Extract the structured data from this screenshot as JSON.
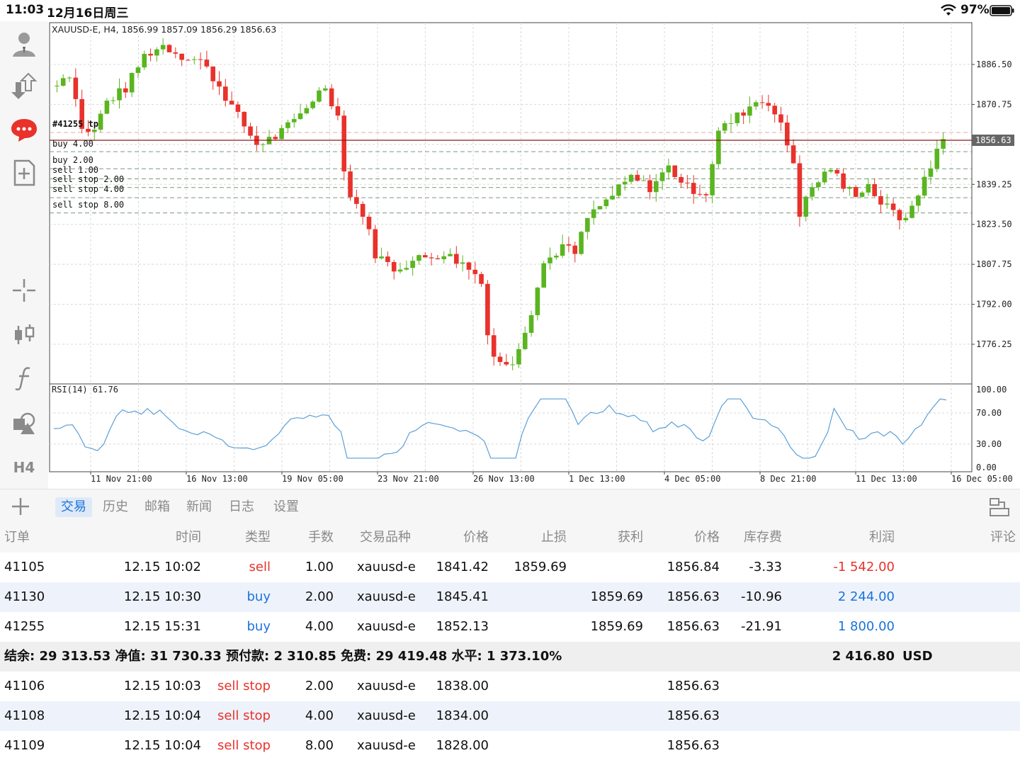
{
  "statusbar": {
    "time": "11:03",
    "date": "12月16日周三",
    "battery_pct": "97%"
  },
  "chart": {
    "header": "XAUUSD-E, H4, 1856.99 1857.09 1856.29 1856.63",
    "price_labels": [
      "1886.50",
      "1870.75",
      "1839.25",
      "1823.50",
      "1807.75",
      "1792.00",
      "1776.25"
    ],
    "current_price": "1856.63",
    "order_lines": [
      {
        "label": "#41255 tp",
        "price": 1859.69,
        "color": "#e8a9a9",
        "text_color": "#111"
      },
      {
        "label": "buy 4.00",
        "price": 1852.13,
        "color": "#7a9a7a",
        "text_color": "#111"
      },
      {
        "label": "buy 2.00",
        "price": 1845.41,
        "color": "#7a9a7a",
        "text_color": "#111"
      },
      {
        "label": "sell 1.00",
        "price": 1841.42,
        "color": "#7a9a7a",
        "text_color": "#111"
      },
      {
        "label": "sell stop 2.00",
        "price": 1838.0,
        "color": "#7a9a7a",
        "text_color": "#111"
      },
      {
        "label": "sell stop 4.00",
        "price": 1834.0,
        "color": "#7a9a7a",
        "text_color": "#111"
      },
      {
        "label": "sell stop 8.00",
        "price": 1828.0,
        "color": "#7a9a7a",
        "text_color": "#111"
      }
    ],
    "rsi_label": "RSI(14) 61.76",
    "rsi_levels": [
      "100.00",
      "70.00",
      "30.00",
      "0.00"
    ],
    "date_labels": [
      "11 Nov 21:00",
      "16 Nov 13:00",
      "19 Nov 05:00",
      "23 Nov 21:00",
      "26 Nov 13:00",
      "1 Dec 13:00",
      "4 Dec 05:00",
      "8 Dec 21:00",
      "11 Dec 13:00",
      "16 Dec 05:00"
    ],
    "colors": {
      "bull": "#5ab520",
      "bear": "#e8322b",
      "rsi": "#5a9fd8",
      "grid": "#d8d8d8"
    }
  },
  "toolbar": {
    "icons": [
      "user-icon",
      "transfer-icon",
      "chat-icon",
      "new-order-icon",
      "crosshair-icon",
      "candle-icon",
      "function-icon",
      "objects-icon"
    ],
    "timeframe": "H4"
  },
  "tabs": {
    "items": [
      {
        "label": "交易",
        "active": true
      },
      {
        "label": "历史",
        "active": false
      },
      {
        "label": "邮箱",
        "active": false
      },
      {
        "label": "新闻",
        "active": false
      },
      {
        "label": "日志",
        "active": false
      },
      {
        "label": "设置",
        "active": false
      }
    ]
  },
  "table": {
    "headers": [
      "订单",
      "时间",
      "类型",
      "手数",
      "交易品种",
      "价格",
      "止损",
      "获利",
      "价格",
      "库存费",
      "利润",
      "评论"
    ],
    "positions": [
      {
        "order": "41105",
        "time": "12.15 10:02",
        "type": "sell",
        "lots": "1.00",
        "symbol": "xauusd-e",
        "price": "1841.42",
        "sl": "1859.69",
        "tp": "",
        "cur": "1856.84",
        "swap": "-3.33",
        "profit": "-1 542.00"
      },
      {
        "order": "41130",
        "time": "12.15 10:30",
        "type": "buy",
        "lots": "2.00",
        "symbol": "xauusd-e",
        "price": "1845.41",
        "sl": "",
        "tp": "1859.69",
        "cur": "1856.63",
        "swap": "-10.96",
        "profit": "2 244.00"
      },
      {
        "order": "41255",
        "time": "12.15 15:31",
        "type": "buy",
        "lots": "4.00",
        "symbol": "xauusd-e",
        "price": "1852.13",
        "sl": "",
        "tp": "1859.69",
        "cur": "1856.63",
        "swap": "-21.91",
        "profit": "1 800.00"
      }
    ],
    "summary": {
      "text": "结余:  29 313.53 净值:  31 730.33 预付款:  2 310.85 免费:  29 419.48 水平:  1 373.10%",
      "total": "2 416.80",
      "currency": "USD"
    },
    "pending": [
      {
        "order": "41106",
        "time": "12.15 10:03",
        "type": "sell stop",
        "lots": "2.00",
        "symbol": "xauusd-e",
        "price": "1838.00",
        "cur": "1856.63"
      },
      {
        "order": "41108",
        "time": "12.15 10:04",
        "type": "sell stop",
        "lots": "4.00",
        "symbol": "xauusd-e",
        "price": "1834.00",
        "cur": "1856.63"
      },
      {
        "order": "41109",
        "time": "12.15 10:04",
        "type": "sell stop",
        "lots": "8.00",
        "symbol": "xauusd-e",
        "price": "1828.00",
        "cur": "1856.63"
      }
    ]
  }
}
